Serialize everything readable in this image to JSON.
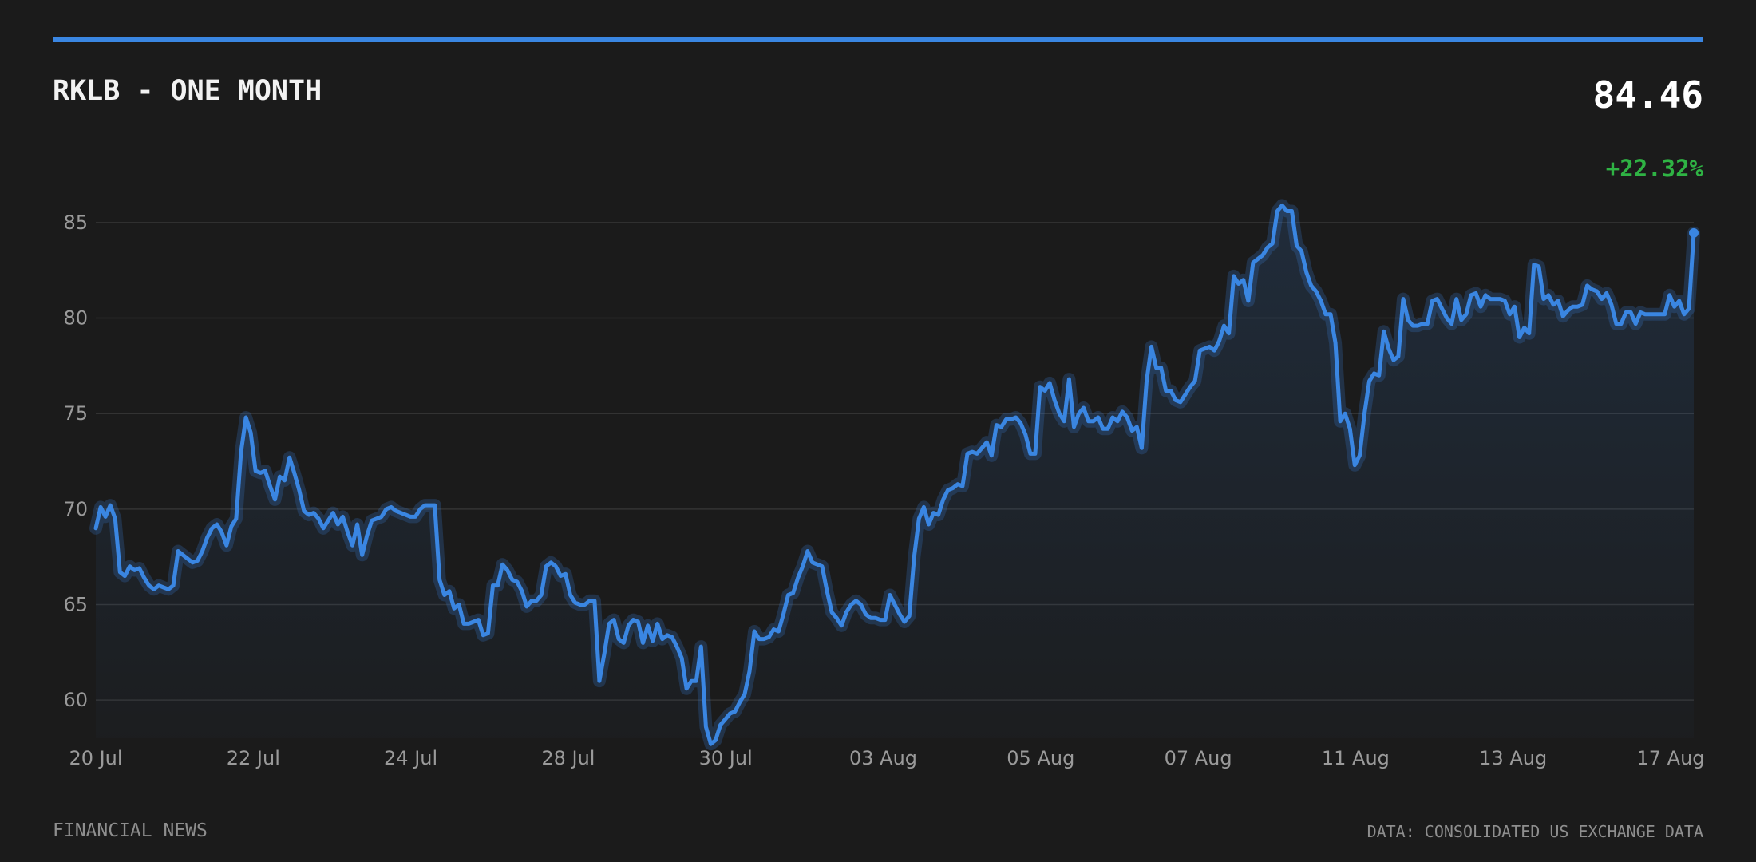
{
  "header": {
    "title": "RKLB - ONE MONTH",
    "price": "84.46",
    "change": "+22.32%"
  },
  "footer": {
    "source_left": "FINANCIAL NEWS",
    "source_right": "DATA: CONSOLIDATED US EXCHANGE DATA"
  },
  "colors": {
    "accent": "#3a86e2",
    "positive": "#2fb344",
    "background": "#1b1b1b",
    "grid": "#333333"
  },
  "chart_data": {
    "type": "area",
    "title": "RKLB - ONE MONTH",
    "xlabel": "",
    "ylabel": "",
    "ylim": [
      58,
      86.5
    ],
    "grid": true,
    "legend": "none",
    "yticks": [
      60,
      65,
      70,
      75,
      80,
      85
    ],
    "xticks": [
      "20 Jul",
      "22 Jul",
      "24 Jul",
      "28 Jul",
      "30 Jul",
      "03 Aug",
      "05 Aug",
      "07 Aug",
      "11 Aug",
      "13 Aug",
      "17 Aug"
    ],
    "series": [
      {
        "values": [
          69.0,
          70.1,
          69.6,
          70.2,
          69.5,
          66.7,
          66.5,
          67.0,
          66.8,
          66.9,
          66.4,
          66.0,
          65.8,
          66.0,
          65.9,
          65.8,
          66.0,
          67.8,
          67.6,
          67.4,
          67.2,
          67.3,
          67.8,
          68.5,
          69.0,
          69.2,
          68.8,
          68.1,
          69.1,
          69.5,
          73.0,
          74.8,
          74.0,
          72.0,
          71.9,
          72.0,
          71.2,
          70.5,
          71.7,
          71.5,
          72.7,
          71.9,
          71.0,
          69.9,
          69.7,
          69.8,
          69.5,
          69.0,
          69.4,
          69.8,
          69.2,
          69.6,
          68.8,
          68.1,
          69.2,
          67.6,
          68.6,
          69.4,
          69.5,
          69.6,
          70.0,
          70.1,
          69.9,
          69.8,
          69.7,
          69.6,
          69.6,
          70.0,
          70.2,
          70.2,
          70.2,
          66.3,
          65.5,
          65.7,
          64.8,
          65.0,
          64.0,
          64.0,
          64.1,
          64.2,
          63.4,
          63.5,
          66.0,
          66.0,
          67.1,
          66.8,
          66.3,
          66.2,
          65.7,
          64.9,
          65.2,
          65.2,
          65.5,
          67.0,
          67.2,
          67.0,
          66.5,
          66.6,
          65.5,
          65.1,
          65.0,
          65.0,
          65.2,
          65.2,
          61.0,
          62.4,
          64.0,
          64.2,
          63.2,
          63.0,
          63.9,
          64.2,
          64.1,
          63.0,
          63.9,
          63.1,
          64.0,
          63.2,
          63.4,
          63.3,
          62.8,
          62.2,
          60.6,
          61.0,
          61.0,
          62.8,
          58.6,
          57.7,
          57.9,
          58.7,
          59.0,
          59.3,
          59.4,
          59.9,
          60.3,
          61.5,
          63.6,
          63.2,
          63.2,
          63.3,
          63.7,
          63.6,
          64.5,
          65.5,
          65.6,
          66.4,
          67.0,
          67.8,
          67.2,
          67.1,
          67.0,
          65.7,
          64.6,
          64.3,
          63.9,
          64.6,
          65.0,
          65.2,
          65.0,
          64.5,
          64.3,
          64.3,
          64.2,
          64.2,
          65.5,
          65.0,
          64.5,
          64.1,
          64.4,
          67.5,
          69.5,
          70.1,
          69.2,
          69.8,
          69.7,
          70.5,
          71.0,
          71.1,
          71.3,
          71.2,
          72.9,
          73.0,
          72.9,
          73.2,
          73.5,
          72.8,
          74.4,
          74.3,
          74.7,
          74.7,
          74.8,
          74.5,
          73.9,
          72.9,
          72.9,
          76.4,
          76.2,
          76.6,
          75.7,
          75.0,
          74.6,
          76.8,
          74.3,
          75.0,
          75.3,
          74.6,
          74.6,
          74.8,
          74.2,
          74.2,
          74.8,
          74.6,
          75.1,
          74.8,
          74.1,
          74.3,
          73.2,
          76.7,
          78.5,
          77.4,
          77.4,
          76.2,
          76.2,
          75.7,
          75.6,
          76.0,
          76.4,
          76.7,
          78.3,
          78.4,
          78.5,
          78.3,
          78.8,
          79.6,
          79.2,
          82.2,
          81.8,
          82.0,
          80.9,
          82.9,
          83.1,
          83.3,
          83.7,
          83.9,
          85.6,
          85.9,
          85.6,
          85.6,
          83.8,
          83.5,
          82.4,
          81.7,
          81.4,
          80.9,
          80.2,
          80.2,
          78.7,
          74.6,
          75.0,
          74.2,
          72.3,
          72.8,
          75.0,
          76.7,
          77.1,
          77.0,
          79.3,
          78.4,
          77.8,
          78.0,
          81.0,
          79.9,
          79.6,
          79.6,
          79.7,
          79.7,
          80.9,
          81.0,
          80.5,
          80.0,
          79.7,
          81.0,
          79.9,
          80.2,
          81.2,
          81.3,
          80.6,
          81.2,
          81.0,
          81.0,
          81.0,
          80.9,
          80.2,
          80.6,
          79.0,
          79.5,
          79.2,
          82.8,
          82.7,
          81.0,
          81.2,
          80.7,
          80.9,
          80.1,
          80.4,
          80.6,
          80.6,
          80.7,
          81.7,
          81.5,
          81.4,
          81.0,
          81.3,
          80.7,
          79.7,
          79.7,
          80.3,
          80.3,
          79.7,
          80.3,
          80.2,
          80.2,
          80.2,
          80.2,
          80.2,
          81.2,
          80.6,
          80.9,
          80.2,
          80.5,
          84.46
        ]
      }
    ]
  }
}
